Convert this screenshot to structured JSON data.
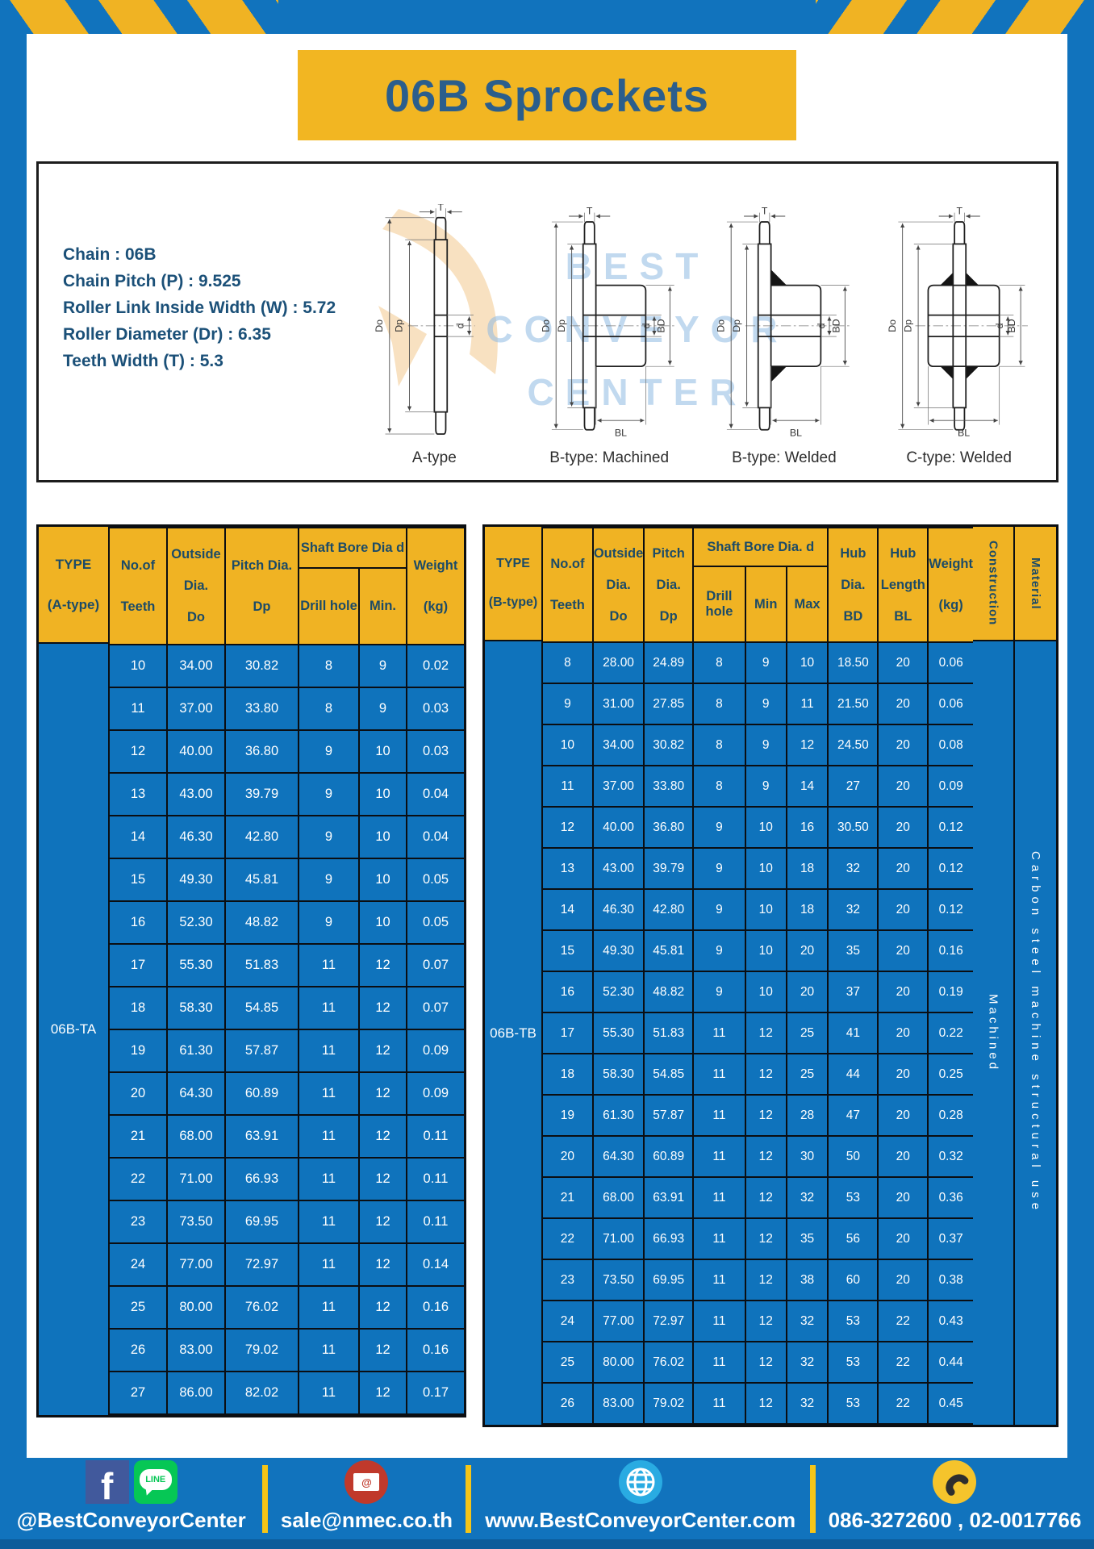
{
  "page": {
    "title": "06B Sprockets"
  },
  "colors": {
    "brand_blue": "#1173BD",
    "accent_yellow": "#F0B323",
    "cell_blue": "#0F73BC",
    "navy_text": "#1C4B67",
    "facebook_blue": "#41599C",
    "line_green": "#06C755",
    "email_red": "#C0392B",
    "globe_blue": "#29ABE2",
    "phone_yellow": "#F5C42C"
  },
  "specs": {
    "lines": [
      "Chain : 06B",
      "Chain Pitch (P) : 9.525",
      "Roller Link Inside Width (W) : 5.72",
      "Roller Diameter (Dr) : 6.35",
      "Teeth Width (T) : 5.3"
    ]
  },
  "diagrams": {
    "watermark": [
      "BEST",
      "CONVEYOR",
      "CENTER"
    ],
    "dims": {
      "T": "T",
      "Do": "Do",
      "Dp": "Dp",
      "d": "d",
      "BD": "BD",
      "BL": "BL"
    },
    "types": [
      {
        "caption": "A-type"
      },
      {
        "caption": "B-type: Machined"
      },
      {
        "caption": "B-type: Welded"
      },
      {
        "caption": "C-type: Welded"
      }
    ]
  },
  "table_a": {
    "header": {
      "type": [
        "TYPE",
        "(A-type)"
      ],
      "teeth": [
        "No.of",
        "Teeth"
      ],
      "outside": [
        "Outside",
        "Dia.",
        "Do"
      ],
      "pitch": [
        "Pitch Dia.",
        "Dp"
      ],
      "shaft_bore_group": "Shaft Bore Dia d",
      "drill_hole": "Drill hole",
      "min": "Min.",
      "weight": [
        "Weight",
        "(kg)"
      ]
    },
    "type_value": "06B-TA",
    "rows": [
      [
        "10",
        "34.00",
        "30.82",
        "8",
        "9",
        "0.02"
      ],
      [
        "11",
        "37.00",
        "33.80",
        "8",
        "9",
        "0.03"
      ],
      [
        "12",
        "40.00",
        "36.80",
        "9",
        "10",
        "0.03"
      ],
      [
        "13",
        "43.00",
        "39.79",
        "9",
        "10",
        "0.04"
      ],
      [
        "14",
        "46.30",
        "42.80",
        "9",
        "10",
        "0.04"
      ],
      [
        "15",
        "49.30",
        "45.81",
        "9",
        "10",
        "0.05"
      ],
      [
        "16",
        "52.30",
        "48.82",
        "9",
        "10",
        "0.05"
      ],
      [
        "17",
        "55.30",
        "51.83",
        "11",
        "12",
        "0.07"
      ],
      [
        "18",
        "58.30",
        "54.85",
        "11",
        "12",
        "0.07"
      ],
      [
        "19",
        "61.30",
        "57.87",
        "11",
        "12",
        "0.09"
      ],
      [
        "20",
        "64.30",
        "60.89",
        "11",
        "12",
        "0.09"
      ],
      [
        "21",
        "68.00",
        "63.91",
        "11",
        "12",
        "0.11"
      ],
      [
        "22",
        "71.00",
        "66.93",
        "11",
        "12",
        "0.11"
      ],
      [
        "23",
        "73.50",
        "69.95",
        "11",
        "12",
        "0.11"
      ],
      [
        "24",
        "77.00",
        "72.97",
        "11",
        "12",
        "0.14"
      ],
      [
        "25",
        "80.00",
        "76.02",
        "11",
        "12",
        "0.16"
      ],
      [
        "26",
        "83.00",
        "79.02",
        "11",
        "12",
        "0.16"
      ],
      [
        "27",
        "86.00",
        "82.02",
        "11",
        "12",
        "0.17"
      ]
    ]
  },
  "table_b": {
    "header": {
      "type": [
        "TYPE",
        "(B-type)"
      ],
      "teeth": [
        "No.of",
        "Teeth"
      ],
      "outside": [
        "Outside",
        "Dia.",
        "Do"
      ],
      "pitch": [
        "Pitch",
        "Dia.",
        "Dp"
      ],
      "shaft_bore_group": "Shaft Bore Dia. d",
      "drill_hole": "Drill hole",
      "min": "Min",
      "max": "Max",
      "hub_dia": [
        "Hub",
        "Dia.",
        "BD"
      ],
      "hub_length": [
        "Hub",
        "Length",
        "BL"
      ],
      "weight": [
        "Weight",
        "(kg)"
      ],
      "construction": "Construction",
      "material": "Material"
    },
    "type_value": "06B-TB",
    "construction_value": "Machined",
    "material_value": "Carbon steel machine structural use",
    "rows": [
      [
        "8",
        "28.00",
        "24.89",
        "8",
        "9",
        "10",
        "18.50",
        "20",
        "0.06"
      ],
      [
        "9",
        "31.00",
        "27.85",
        "8",
        "9",
        "11",
        "21.50",
        "20",
        "0.06"
      ],
      [
        "10",
        "34.00",
        "30.82",
        "8",
        "9",
        "12",
        "24.50",
        "20",
        "0.08"
      ],
      [
        "11",
        "37.00",
        "33.80",
        "8",
        "9",
        "14",
        "27",
        "20",
        "0.09"
      ],
      [
        "12",
        "40.00",
        "36.80",
        "9",
        "10",
        "16",
        "30.50",
        "20",
        "0.12"
      ],
      [
        "13",
        "43.00",
        "39.79",
        "9",
        "10",
        "18",
        "32",
        "20",
        "0.12"
      ],
      [
        "14",
        "46.30",
        "42.80",
        "9",
        "10",
        "18",
        "32",
        "20",
        "0.12"
      ],
      [
        "15",
        "49.30",
        "45.81",
        "9",
        "10",
        "20",
        "35",
        "20",
        "0.16"
      ],
      [
        "16",
        "52.30",
        "48.82",
        "9",
        "10",
        "20",
        "37",
        "20",
        "0.19"
      ],
      [
        "17",
        "55.30",
        "51.83",
        "11",
        "12",
        "25",
        "41",
        "20",
        "0.22"
      ],
      [
        "18",
        "58.30",
        "54.85",
        "11",
        "12",
        "25",
        "44",
        "20",
        "0.25"
      ],
      [
        "19",
        "61.30",
        "57.87",
        "11",
        "12",
        "28",
        "47",
        "20",
        "0.28"
      ],
      [
        "20",
        "64.30",
        "60.89",
        "11",
        "12",
        "30",
        "50",
        "20",
        "0.32"
      ],
      [
        "21",
        "68.00",
        "63.91",
        "11",
        "12",
        "32",
        "53",
        "20",
        "0.36"
      ],
      [
        "22",
        "71.00",
        "66.93",
        "11",
        "12",
        "35",
        "56",
        "20",
        "0.37"
      ],
      [
        "23",
        "73.50",
        "69.95",
        "11",
        "12",
        "38",
        "60",
        "20",
        "0.38"
      ],
      [
        "24",
        "77.00",
        "72.97",
        "11",
        "12",
        "32",
        "53",
        "22",
        "0.43"
      ],
      [
        "25",
        "80.00",
        "76.02",
        "11",
        "12",
        "32",
        "53",
        "22",
        "0.44"
      ],
      [
        "26",
        "83.00",
        "79.02",
        "11",
        "12",
        "32",
        "53",
        "22",
        "0.45"
      ]
    ]
  },
  "footer": {
    "social_label": "@BestConveyorCenter",
    "line_icon_text": "LINE",
    "facebook_letter": "f",
    "email": "sale@nmec.co.th",
    "email_at": "@",
    "website": "www.BestConveyorCenter.com",
    "phones": "086-3272600 , 02-0017766"
  }
}
